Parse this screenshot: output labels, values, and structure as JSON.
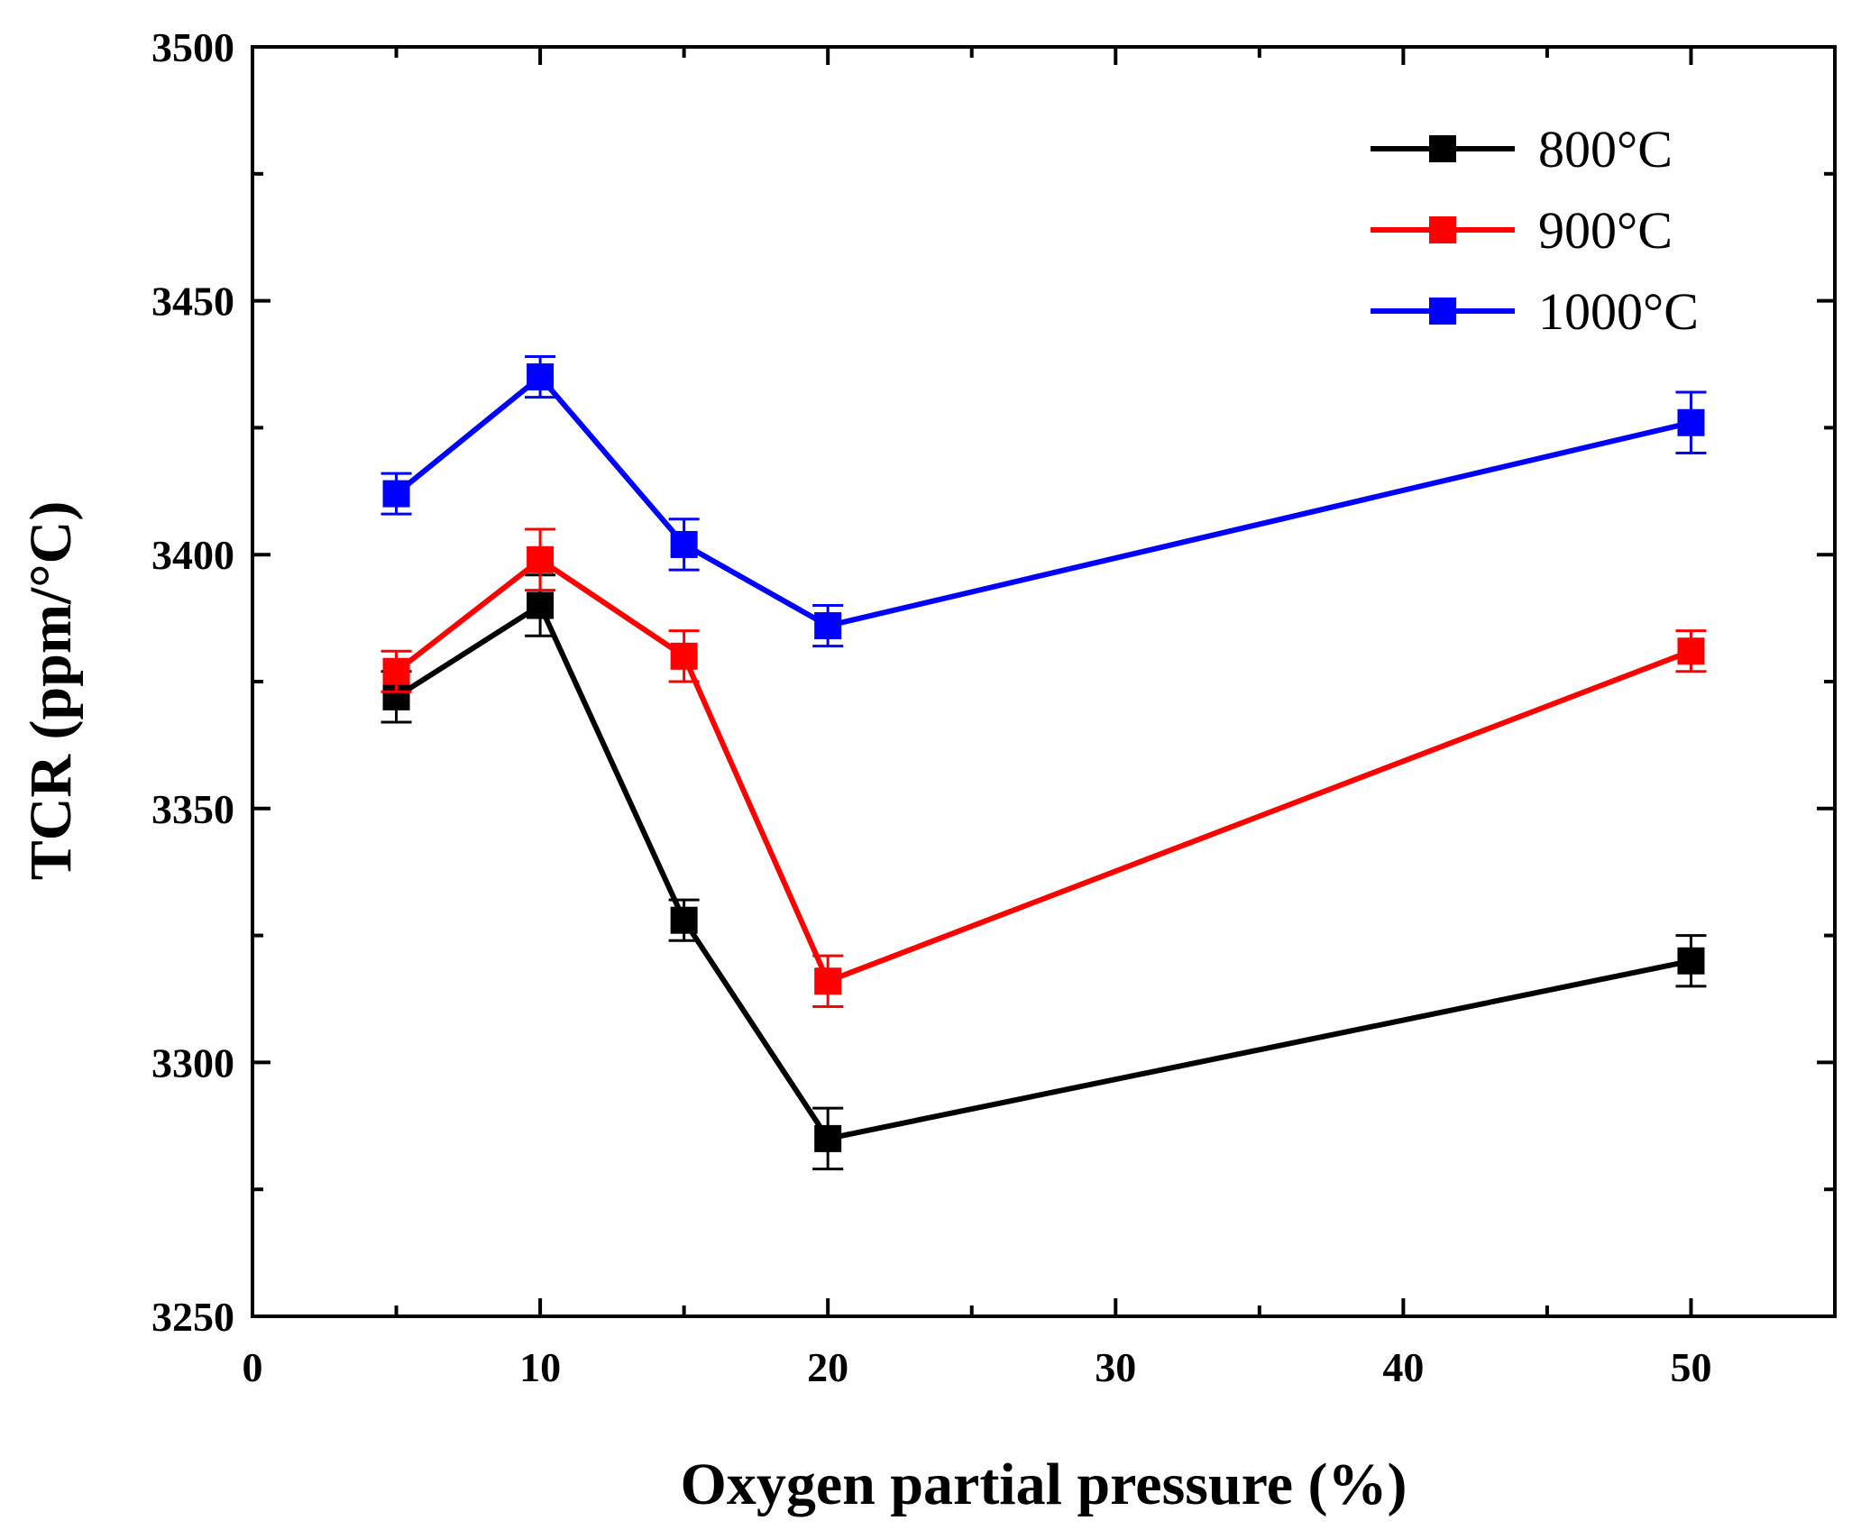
{
  "chart_data": {
    "type": "line",
    "title": "",
    "xlabel": "Oxygen partial pressure (%)",
    "ylabel": "TCR (ppm/°C)",
    "xlim": [
      0,
      55
    ],
    "ylim": [
      3250,
      3500
    ],
    "xticks": [
      0,
      10,
      20,
      30,
      40,
      50
    ],
    "yticks": [
      3250,
      3300,
      3350,
      3400,
      3450,
      3500
    ],
    "xtick_labels": [
      "0",
      "10",
      "20",
      "30",
      "40",
      "50"
    ],
    "ytick_labels": [
      "3250",
      "3300",
      "3350",
      "3400",
      "3450",
      "3500"
    ],
    "grid": false,
    "legend_position": "top-right",
    "marker": "square",
    "x": [
      5,
      10,
      15,
      20,
      50
    ],
    "series": [
      {
        "name": "800°C",
        "color": "#000000",
        "values": [
          3372,
          3390,
          3328,
          3285,
          3320
        ],
        "errors": [
          5,
          6,
          4,
          6,
          5
        ]
      },
      {
        "name": "900°C",
        "color": "#ff0000",
        "values": [
          3377,
          3399,
          3380,
          3316,
          3381
        ],
        "errors": [
          4,
          6,
          5,
          5,
          4
        ]
      },
      {
        "name": "1000°C",
        "color": "#0000ff",
        "values": [
          3412,
          3435,
          3402,
          3386,
          3426
        ],
        "errors": [
          4,
          4,
          5,
          4,
          6
        ]
      }
    ]
  }
}
